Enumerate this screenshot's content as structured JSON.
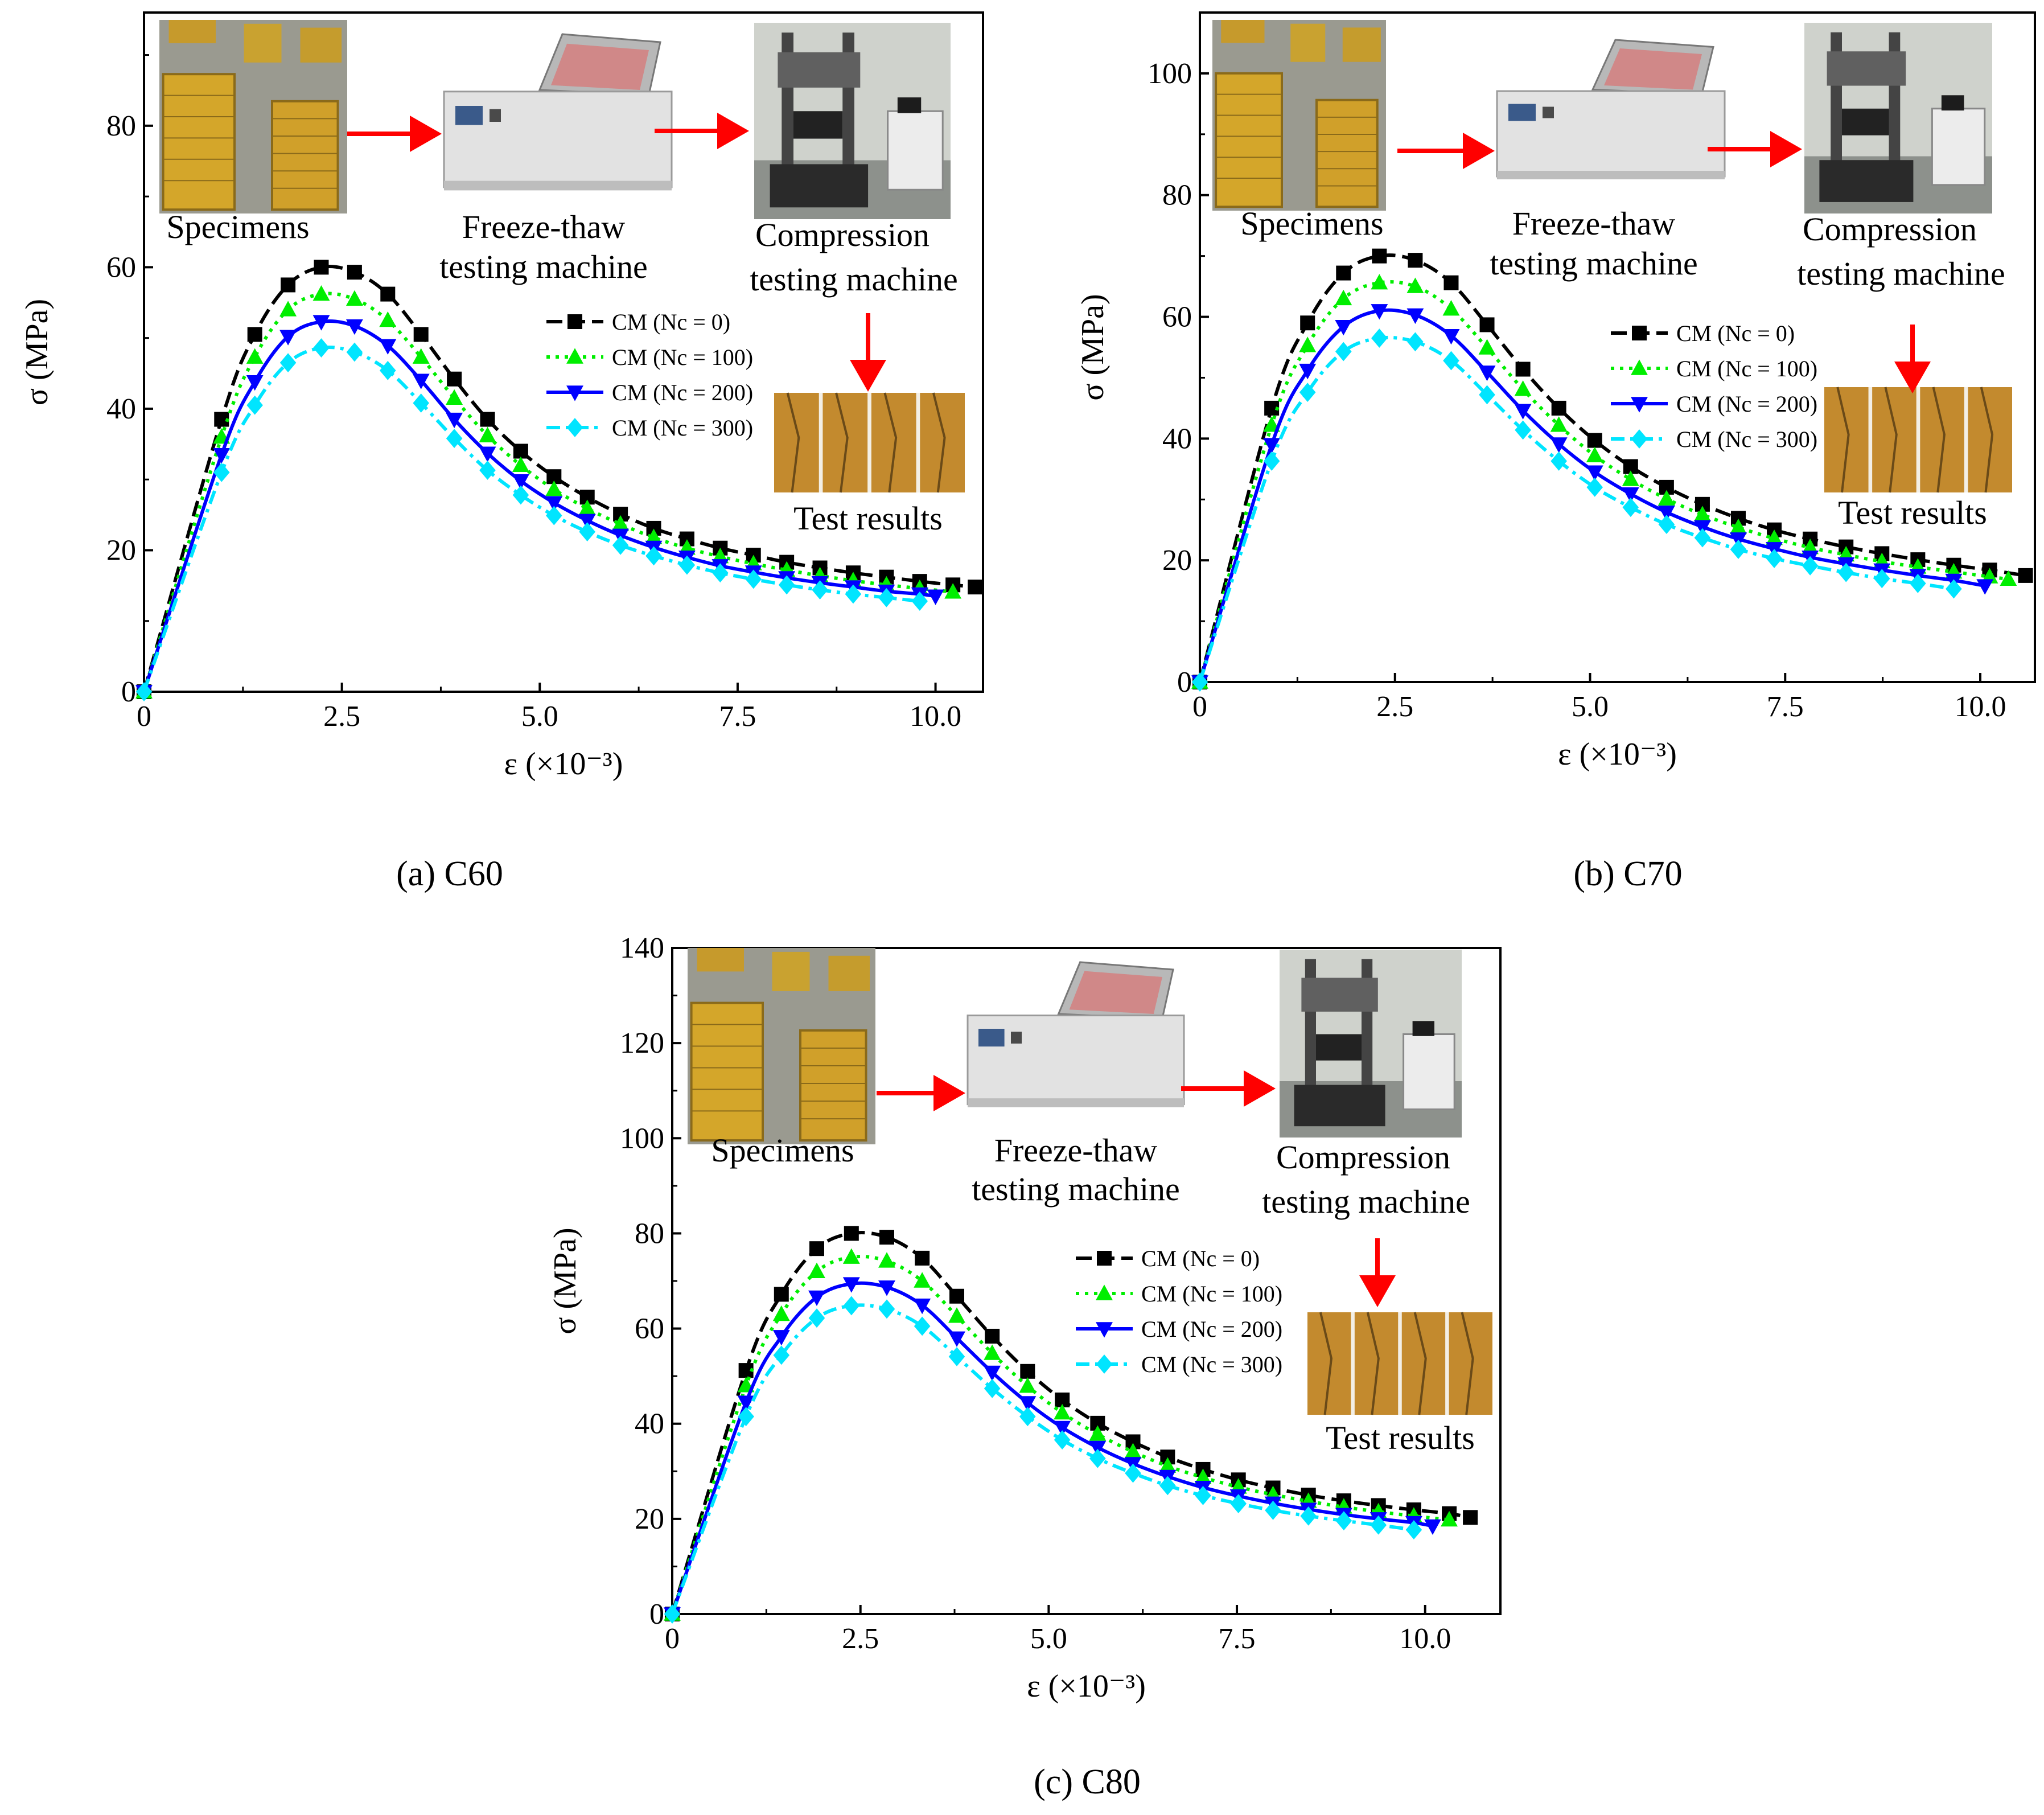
{
  "figure": {
    "common": {
      "xlabel": "ε (×10⁻³)",
      "ylabel": "σ (MPa)",
      "x_ticks": [
        0,
        2.5,
        5.0,
        7.5,
        10.0
      ],
      "x_tick_labels": [
        "0",
        "2.5",
        "5.0",
        "7.5",
        "10.0"
      ],
      "step_labels": [
        "Specimens",
        "Freeze-thaw",
        "testing machine",
        "Compression",
        "testing machine",
        "Test results"
      ],
      "legend": [
        "CM (Nc = 0)",
        "CM (Nc = 100)",
        "CM (Nc = 200)",
        "CM (Nc = 300)"
      ]
    }
  },
  "series_styles": [
    {
      "name": "CM (Nc = 0)",
      "color": "#000000",
      "marker": "square",
      "dash": "28,12"
    },
    {
      "name": "CM (Nc = 100)",
      "color": "#00ee00",
      "marker": "triangle-up",
      "dash": "6,10"
    },
    {
      "name": "CM (Nc = 200)",
      "color": "#0000ff",
      "marker": "triangle-down",
      "dash": ""
    },
    {
      "name": "CM (Nc = 300)",
      "color": "#00e5ff",
      "marker": "diamond",
      "dash": "24,10,6,10"
    }
  ],
  "chart_data": [
    {
      "type": "line",
      "panel_label": "(a) C60",
      "title": "C60",
      "xlabel": "ε (×10⁻³)",
      "ylabel": "σ (MPa)",
      "xlim": [
        0,
        10.6
      ],
      "ylim": [
        0,
        96
      ],
      "y_ticks": [
        0,
        20,
        40,
        60,
        80
      ],
      "series": [
        {
          "name": "CM (Nc = 0)",
          "x": [
            0,
            0.98,
            1.4,
            1.82,
            2.24,
            2.66,
            3.08,
            3.5,
            3.92,
            4.34,
            4.76,
            5.18,
            5.6,
            6.02,
            6.44,
            6.86,
            7.28,
            7.7,
            8.12,
            8.54,
            8.96,
            9.38,
            9.8,
            10.22,
            10.5
          ],
          "y": [
            0,
            38.5,
            50.5,
            57.5,
            60,
            59.3,
            56.2,
            50.5,
            44.2,
            38.5,
            34,
            30.4,
            27.5,
            25.1,
            23.1,
            21.6,
            20.3,
            19.3,
            18.3,
            17.5,
            16.8,
            16.2,
            15.6,
            15.1,
            14.8
          ]
        },
        {
          "name": "CM (Nc = 100)",
          "x": [
            0,
            0.98,
            1.4,
            1.82,
            2.24,
            2.66,
            3.08,
            3.5,
            3.92,
            4.34,
            4.76,
            5.18,
            5.6,
            6.02,
            6.44,
            6.86,
            7.28,
            7.7,
            8.12,
            8.54,
            8.96,
            9.38,
            9.8,
            10.22
          ],
          "y": [
            0,
            36,
            47.3,
            54,
            56.2,
            55.5,
            52.5,
            47.3,
            41.5,
            36.2,
            32,
            28.6,
            25.9,
            23.7,
            21.8,
            20.3,
            19.1,
            18.1,
            17.2,
            16.4,
            15.7,
            15.1,
            14.6,
            14.1
          ]
        },
        {
          "name": "CM (Nc = 200)",
          "x": [
            0,
            0.98,
            1.4,
            1.82,
            2.24,
            2.66,
            3.08,
            3.5,
            3.92,
            4.34,
            4.76,
            5.18,
            5.6,
            6.02,
            6.44,
            6.86,
            7.28,
            7.7,
            8.12,
            8.54,
            8.96,
            9.38,
            9.8,
            10.0
          ],
          "y": [
            0,
            33.5,
            43.8,
            50.2,
            52.3,
            51.7,
            48.9,
            44,
            38.5,
            33.7,
            29.8,
            26.7,
            24.2,
            22.1,
            20.4,
            19,
            17.8,
            16.9,
            16.1,
            15.4,
            14.8,
            14.2,
            13.8,
            13.5
          ]
        },
        {
          "name": "CM (Nc = 300)",
          "x": [
            0,
            0.98,
            1.4,
            1.82,
            2.24,
            2.66,
            3.08,
            3.5,
            3.92,
            4.34,
            4.76,
            5.18,
            5.6,
            6.02,
            6.44,
            6.86,
            7.28,
            7.7,
            8.12,
            8.54,
            8.96,
            9.38,
            9.8
          ],
          "y": [
            0,
            31,
            40.5,
            46.5,
            48.6,
            48,
            45.4,
            40.8,
            35.8,
            31.3,
            27.8,
            24.9,
            22.6,
            20.7,
            19.2,
            17.9,
            16.8,
            15.9,
            15.1,
            14.4,
            13.8,
            13.3,
            12.8
          ]
        }
      ]
    },
    {
      "type": "line",
      "panel_label": "(b) C70",
      "title": "C70",
      "xlabel": "ε (×10⁻³)",
      "ylabel": "σ (MPa)",
      "xlim": [
        0,
        10.7
      ],
      "ylim": [
        0,
        110
      ],
      "y_ticks": [
        0,
        20,
        40,
        60,
        80,
        100
      ],
      "series": [
        {
          "name": "CM (Nc = 0)",
          "x": [
            0,
            0.92,
            1.38,
            1.84,
            2.3,
            2.76,
            3.22,
            3.68,
            4.14,
            4.6,
            5.06,
            5.52,
            5.98,
            6.44,
            6.9,
            7.36,
            7.82,
            8.28,
            8.74,
            9.2,
            9.66,
            10.12,
            10.58
          ],
          "y": [
            0,
            45,
            59,
            67.2,
            70,
            69.3,
            65.6,
            58.7,
            51.4,
            45,
            39.7,
            35.4,
            32,
            29.2,
            26.9,
            25,
            23.5,
            22.2,
            21.1,
            20.1,
            19.2,
            18.4,
            17.5
          ]
        },
        {
          "name": "CM (Nc = 100)",
          "x": [
            0,
            0.92,
            1.38,
            1.84,
            2.3,
            2.76,
            3.22,
            3.68,
            4.14,
            4.6,
            5.06,
            5.52,
            5.98,
            6.44,
            6.9,
            7.36,
            7.82,
            8.28,
            8.74,
            9.2,
            9.66,
            10.12,
            10.36
          ],
          "y": [
            0,
            42.2,
            55.3,
            63,
            65.6,
            65,
            61.3,
            54.9,
            48.1,
            42.2,
            37.2,
            33.3,
            30.1,
            27.5,
            25.4,
            23.6,
            22.1,
            20.9,
            19.8,
            18.9,
            18.1,
            17.3,
            16.9
          ]
        },
        {
          "name": "CM (Nc = 200)",
          "x": [
            0,
            0.92,
            1.38,
            1.84,
            2.3,
            2.76,
            3.22,
            3.68,
            4.14,
            4.6,
            5.06,
            5.52,
            5.98,
            6.44,
            6.9,
            7.36,
            7.82,
            8.28,
            8.74,
            9.2,
            9.66,
            10.06
          ],
          "y": [
            0,
            39,
            51.2,
            58.4,
            61,
            60.3,
            56.9,
            50.9,
            44.6,
            39.1,
            34.5,
            30.9,
            27.9,
            25.5,
            23.5,
            21.9,
            20.5,
            19.4,
            18.4,
            17.5,
            16.7,
            15.8
          ]
        },
        {
          "name": "CM (Nc = 300)",
          "x": [
            0,
            0.92,
            1.38,
            1.84,
            2.3,
            2.76,
            3.22,
            3.68,
            4.14,
            4.6,
            5.06,
            5.52,
            5.98,
            6.44,
            6.9,
            7.36,
            7.82,
            8.28,
            8.74,
            9.2,
            9.66
          ],
          "y": [
            0,
            36.3,
            47.6,
            54.3,
            56.5,
            55.9,
            52.8,
            47.2,
            41.4,
            36.3,
            32,
            28.7,
            25.9,
            23.7,
            21.8,
            20.3,
            19.1,
            18,
            17,
            16.2,
            15.3
          ]
        }
      ]
    },
    {
      "type": "line",
      "panel_label": "(c) C80",
      "title": "C80",
      "xlabel": "ε (×10⁻³)",
      "ylabel": "σ (MPa)",
      "xlim": [
        0,
        11.0
      ],
      "ylim": [
        0,
        140
      ],
      "y_ticks": [
        0,
        20,
        40,
        60,
        80,
        100,
        120,
        140
      ],
      "series": [
        {
          "name": "CM (Nc = 0)",
          "x": [
            0,
            0.98,
            1.45,
            1.92,
            2.38,
            2.85,
            3.32,
            3.78,
            4.25,
            4.72,
            5.18,
            5.65,
            6.12,
            6.58,
            7.05,
            7.52,
            7.98,
            8.45,
            8.92,
            9.38,
            9.85,
            10.32,
            10.6
          ],
          "y": [
            0,
            51.2,
            67.2,
            76.8,
            80,
            79.2,
            74.8,
            66.8,
            58.4,
            51,
            45,
            40.1,
            36.2,
            33,
            30.4,
            28.2,
            26.5,
            25,
            23.8,
            22.8,
            21.9,
            21.1,
            20.3
          ]
        },
        {
          "name": "CM (Nc = 100)",
          "x": [
            0,
            0.98,
            1.45,
            1.92,
            2.38,
            2.85,
            3.32,
            3.78,
            4.25,
            4.72,
            5.18,
            5.65,
            6.12,
            6.58,
            7.05,
            7.52,
            7.98,
            8.45,
            8.92,
            9.38,
            9.85,
            10.32
          ],
          "y": [
            0,
            48,
            63,
            72,
            75,
            74.2,
            70,
            62.6,
            54.8,
            47.9,
            42.3,
            37.8,
            34.1,
            31.1,
            28.7,
            26.7,
            25.1,
            23.7,
            22.5,
            21.5,
            20.6,
            19.8
          ]
        },
        {
          "name": "CM (Nc = 200)",
          "x": [
            0,
            0.98,
            1.45,
            1.92,
            2.38,
            2.85,
            3.32,
            3.78,
            4.25,
            4.72,
            5.18,
            5.65,
            6.12,
            6.58,
            7.05,
            7.52,
            7.98,
            8.45,
            8.92,
            9.38,
            9.85,
            10.1
          ],
          "y": [
            0,
            44.5,
            58.3,
            66.6,
            69.4,
            68.7,
            64.9,
            58,
            50.8,
            44.4,
            39.2,
            35,
            31.6,
            28.9,
            26.6,
            24.8,
            23.3,
            22,
            20.9,
            20,
            19.2,
            18.5
          ]
        },
        {
          "name": "CM (Nc = 300)",
          "x": [
            0,
            0.98,
            1.45,
            1.92,
            2.38,
            2.85,
            3.32,
            3.78,
            4.25,
            4.72,
            5.18,
            5.65,
            6.12,
            6.58,
            7.05,
            7.52,
            7.98,
            8.45,
            8.92,
            9.38,
            9.85
          ],
          "y": [
            0,
            41.5,
            54.4,
            62.2,
            64.8,
            64.1,
            60.5,
            54.1,
            47.4,
            41.5,
            36.6,
            32.7,
            29.6,
            27,
            24.9,
            23.2,
            21.8,
            20.6,
            19.6,
            18.7,
            17.7
          ]
        }
      ]
    }
  ]
}
